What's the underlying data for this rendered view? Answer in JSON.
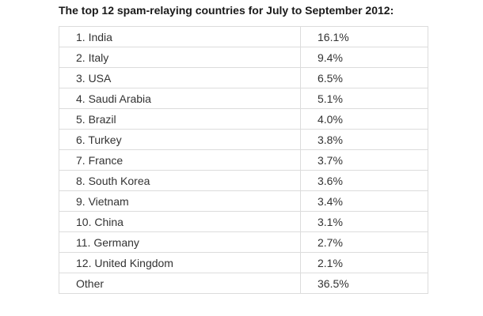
{
  "title": "The top 12 spam-relaying countries for July to September 2012:",
  "rows": [
    {
      "country": "1. India",
      "share": "16.1%"
    },
    {
      "country": "2. Italy",
      "share": "9.4%"
    },
    {
      "country": "3. USA",
      "share": "6.5%"
    },
    {
      "country": "4. Saudi Arabia",
      "share": "5.1%"
    },
    {
      "country": "5. Brazil",
      "share": "4.0%"
    },
    {
      "country": "6. Turkey",
      "share": "3.8%"
    },
    {
      "country": "7. France",
      "share": "3.7%"
    },
    {
      "country": "8. South Korea",
      "share": "3.6%"
    },
    {
      "country": "9. Vietnam",
      "share": "3.4%"
    },
    {
      "country": "10. China",
      "share": "3.1%"
    },
    {
      "country": "11. Germany",
      "share": "2.7%"
    },
    {
      "country": "12. United Kingdom",
      "share": "2.1%"
    },
    {
      "country": "Other",
      "share": "36.5%"
    }
  ]
}
